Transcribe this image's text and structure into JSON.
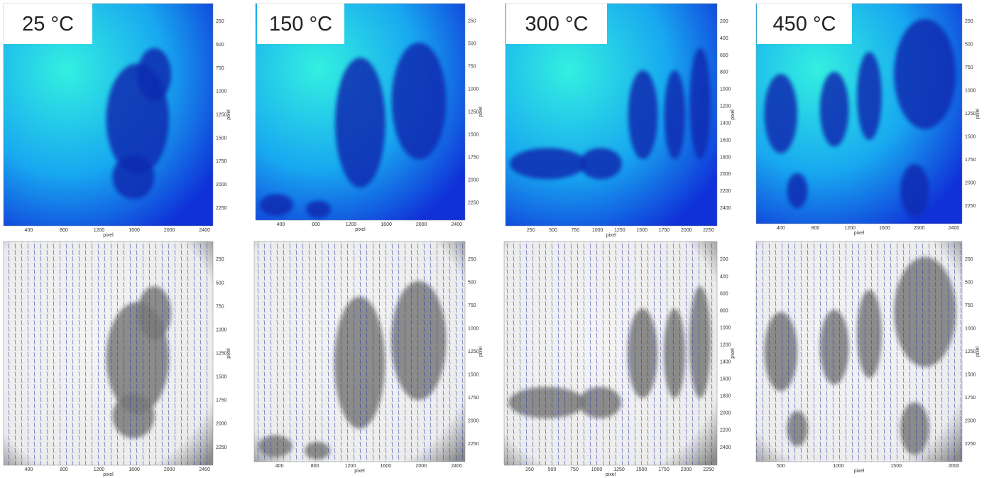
{
  "panels": [
    {
      "label": "25 °C",
      "top": {
        "xticks": [
          "400",
          "800",
          "1200",
          "1600",
          "2000",
          "2400"
        ],
        "yticks": [
          "250",
          "500",
          "750",
          "1000",
          "1250",
          "1500",
          "1750",
          "2000",
          "2250"
        ],
        "xlabel": "pixel",
        "ylabel": "pixel"
      },
      "bottom": {
        "xticks": [
          "400",
          "800",
          "1200",
          "1600",
          "2000",
          "2400"
        ],
        "yticks": [
          "250",
          "500",
          "750",
          "1000",
          "1250",
          "1500",
          "1750",
          "2000",
          "2250"
        ],
        "xlabel": "pixel",
        "ylabel": "pixel"
      }
    },
    {
      "label": "150 °C",
      "top": {
        "xticks": [
          "400",
          "800",
          "1200",
          "1600",
          "2000",
          "2400"
        ],
        "yticks": [
          "250",
          "500",
          "750",
          "1000",
          "1250",
          "1500",
          "1750",
          "2000",
          "2250"
        ],
        "xlabel": "pixel",
        "ylabel": "pixel"
      },
      "bottom": {
        "xticks": [
          "400",
          "800",
          "1200",
          "1600",
          "2000",
          "2400"
        ],
        "yticks": [
          "250",
          "500",
          "750",
          "1000",
          "1250",
          "1500",
          "1750",
          "2000",
          "2250"
        ],
        "xlabel": "pixel",
        "ylabel": "pixel"
      }
    },
    {
      "label": "300 °C",
      "top": {
        "xticks": [
          "250",
          "500",
          "750",
          "1000",
          "1250",
          "1500",
          "1750",
          "2000",
          "2250"
        ],
        "yticks": [
          "200",
          "400",
          "600",
          "800",
          "1000",
          "1200",
          "1400",
          "1600",
          "1800",
          "2000",
          "2200",
          "2400"
        ],
        "xlabel": "pixel",
        "ylabel": "pixel"
      },
      "bottom": {
        "xticks": [
          "250",
          "500",
          "750",
          "1000",
          "1250",
          "1500",
          "1750",
          "2000",
          "2250"
        ],
        "yticks": [
          "200",
          "400",
          "600",
          "800",
          "1000",
          "1200",
          "1400",
          "1600",
          "1800",
          "2000",
          "2200",
          "2400"
        ],
        "xlabel": "pixel",
        "ylabel": "pixel"
      }
    },
    {
      "label": "450 °C",
      "top": {
        "xticks": [
          "400",
          "800",
          "1200",
          "1600",
          "2000",
          "2400"
        ],
        "yticks": [
          "250",
          "500",
          "750",
          "1000",
          "1250",
          "1500",
          "1750",
          "2000",
          "2250"
        ],
        "xlabel": "pixel",
        "ylabel": "pixel"
      },
      "bottom": {
        "xticks": [
          "500",
          "1000",
          "1500",
          "2000"
        ],
        "yticks": [
          "250",
          "500",
          "750",
          "1000",
          "1250",
          "1500",
          "1750",
          "2000",
          "2250"
        ],
        "xlabel": "pixel",
        "ylabel": "pixel"
      }
    }
  ]
}
